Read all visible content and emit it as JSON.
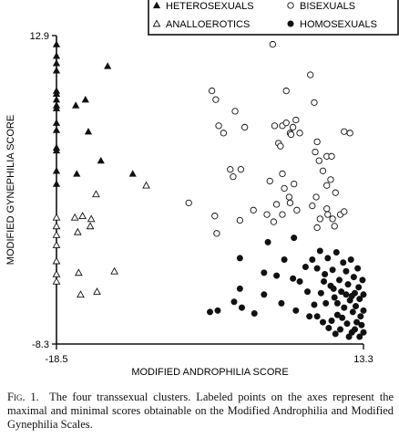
{
  "chart_data": {
    "type": "scatter",
    "title": "",
    "xlabel": "MODIFIED ANDROPHILIA SCORE",
    "ylabel": "MODIFIED GYNEPHILIA SCORE",
    "xlim": [
      -18.5,
      13.3
    ],
    "ylim": [
      -8.3,
      12.9
    ],
    "x_ticks": [
      "-18.5",
      "13.3"
    ],
    "y_ticks": [
      "12.9",
      "-8.3"
    ],
    "grid": false,
    "legend_placement": "top-right",
    "series": [
      {
        "name": "HETEROSEXUALS",
        "marker": "filled-triangle",
        "points": [
          [
            -18.5,
            12.3
          ],
          [
            -18.5,
            11.5
          ],
          [
            -18.5,
            11.0
          ],
          [
            -18.5,
            10.5
          ],
          [
            -18.5,
            9.1
          ],
          [
            -18.5,
            8.9
          ],
          [
            -18.5,
            8.5
          ],
          [
            -18.5,
            8.1
          ],
          [
            -18.5,
            7.9
          ],
          [
            -18.5,
            6.9
          ],
          [
            -18.5,
            6.4
          ],
          [
            -18.5,
            5.2
          ],
          [
            -18.5,
            5.0
          ],
          [
            -18.5,
            3.6
          ],
          [
            -18.5,
            2.7
          ],
          [
            -16.5,
            8.1
          ],
          [
            -16.4,
            3.4
          ],
          [
            -15.5,
            8.5
          ],
          [
            -15.2,
            6.3
          ],
          [
            -13.9,
            4.3
          ],
          [
            -13.2,
            10.8
          ],
          [
            -10.6,
            3.4
          ]
        ]
      },
      {
        "name": "ANALLOEROTICS",
        "marker": "hollow-triangle",
        "points": [
          [
            -18.5,
            0.4
          ],
          [
            -18.5,
            -0.2
          ],
          [
            -18.5,
            -0.8
          ],
          [
            -18.5,
            -1.5
          ],
          [
            -18.5,
            -2.6
          ],
          [
            -18.5,
            -3.5
          ],
          [
            -18.5,
            -4.0
          ],
          [
            -16.6,
            0.4
          ],
          [
            -16.3,
            -0.6
          ],
          [
            -16.2,
            -3.4
          ],
          [
            -16.0,
            -4.9
          ],
          [
            -15.8,
            0.5
          ],
          [
            -15.0,
            -0.2
          ],
          [
            -14.9,
            0.3
          ],
          [
            -14.4,
            2.0
          ],
          [
            -14.3,
            -4.7
          ],
          [
            -12.5,
            -3.3
          ],
          [
            -9.2,
            2.6
          ]
        ]
      },
      {
        "name": "BISEXUALS",
        "marker": "hollow-circle",
        "points": [
          [
            -2.4,
            9.1
          ],
          [
            -2.0,
            8.5
          ],
          [
            -1.7,
            6.7
          ],
          [
            -1.2,
            6.2
          ],
          [
            -4.8,
            1.4
          ],
          [
            -2.1,
            0.5
          ],
          [
            -1.9,
            -0.7
          ],
          [
            0.0,
            7.7
          ],
          [
            1.0,
            6.6
          ],
          [
            -0.5,
            3.7
          ],
          [
            -0.2,
            3.2
          ],
          [
            0.6,
            3.7
          ],
          [
            0.5,
            0.2
          ],
          [
            1.9,
            0.9
          ],
          [
            3.9,
            12.3
          ],
          [
            4.1,
            6.7
          ],
          [
            4.5,
            5.5
          ],
          [
            4.7,
            5.3
          ],
          [
            4.9,
            6.7
          ],
          [
            5.3,
            6.9
          ],
          [
            5.7,
            6.2
          ],
          [
            5.3,
            9.1
          ],
          [
            6.3,
            7.1
          ],
          [
            5.8,
            6.1
          ],
          [
            6.0,
            6.6
          ],
          [
            6.7,
            6.2
          ],
          [
            3.6,
            2.9
          ],
          [
            4.3,
            1.3
          ],
          [
            4.9,
            3.4
          ],
          [
            5.1,
            2.4
          ],
          [
            5.6,
            1.8
          ],
          [
            6.1,
            2.7
          ],
          [
            3.3,
            0.6
          ],
          [
            4.0,
            0.1
          ],
          [
            4.9,
            0.6
          ],
          [
            5.7,
            1.4
          ],
          [
            6.4,
            0.9
          ],
          [
            7.8,
            10.2
          ],
          [
            8.2,
            8.3
          ],
          [
            8.5,
            5.6
          ],
          [
            8.3,
            4.9
          ],
          [
            8.7,
            4.3
          ],
          [
            9.5,
            4.6
          ],
          [
            9.1,
            3.6
          ],
          [
            9.5,
            2.6
          ],
          [
            10.0,
            4.6
          ],
          [
            9.9,
            3.0
          ],
          [
            10.4,
            2.1
          ],
          [
            8.4,
            1.8
          ],
          [
            8.0,
            1.2
          ],
          [
            8.8,
            0.3
          ],
          [
            9.5,
            1.0
          ],
          [
            10.1,
            0.3
          ],
          [
            10.9,
            0.6
          ],
          [
            11.3,
            6.3
          ],
          [
            11.9,
            6.2
          ],
          [
            11.3,
            0.8
          ],
          [
            10.3,
            -0.2
          ],
          [
            9.6,
            0.6
          ],
          [
            8.5,
            -0.3
          ]
        ]
      },
      {
        "name": "HOMOSEXUALS",
        "marker": "filled-circle",
        "points": [
          [
            -2.6,
            -6.1
          ],
          [
            -1.8,
            -6.0
          ],
          [
            -0.1,
            -5.4
          ],
          [
            0.5,
            -4.5
          ],
          [
            0.5,
            -2.4
          ],
          [
            0.7,
            -5.8
          ],
          [
            2.0,
            -6.2
          ],
          [
            3.0,
            -4.9
          ],
          [
            3.0,
            -3.4
          ],
          [
            3.4,
            -1.3
          ],
          [
            4.3,
            -3.6
          ],
          [
            4.8,
            -5.5
          ],
          [
            5.1,
            -2.5
          ],
          [
            6.0,
            -3.8
          ],
          [
            6.1,
            -1.0
          ],
          [
            6.3,
            -6.0
          ],
          [
            6.7,
            -4.0
          ],
          [
            7.3,
            -3.0
          ],
          [
            7.5,
            -4.7
          ],
          [
            7.7,
            -6.4
          ],
          [
            8.0,
            -2.5
          ],
          [
            8.2,
            -5.6
          ],
          [
            8.5,
            -3.1
          ],
          [
            8.5,
            -6.4
          ],
          [
            8.8,
            -1.9
          ],
          [
            8.9,
            -4.8
          ],
          [
            9.1,
            -6.8
          ],
          [
            9.3,
            -3.5
          ],
          [
            9.4,
            -5.5
          ],
          [
            9.6,
            -2.4
          ],
          [
            9.9,
            -4.3
          ],
          [
            10.0,
            -6.7
          ],
          [
            10.1,
            -3.2
          ],
          [
            10.3,
            -5.1
          ],
          [
            10.5,
            -2.0
          ],
          [
            10.6,
            -6.3
          ],
          [
            10.8,
            -3.9
          ],
          [
            10.9,
            -7.3
          ],
          [
            11.0,
            -4.7
          ],
          [
            11.2,
            -2.7
          ],
          [
            11.3,
            -5.8
          ],
          [
            11.5,
            -3.3
          ],
          [
            11.6,
            -6.9
          ],
          [
            11.7,
            -4.2
          ],
          [
            11.9,
            -5.3
          ],
          [
            12.0,
            -2.5
          ],
          [
            12.1,
            -7.5
          ],
          [
            12.2,
            -6.1
          ],
          [
            12.3,
            -3.7
          ],
          [
            12.4,
            -4.8
          ],
          [
            12.5,
            -5.7
          ],
          [
            12.6,
            -6.8
          ],
          [
            12.7,
            -3.1
          ],
          [
            12.8,
            -4.4
          ],
          [
            12.9,
            -5.2
          ],
          [
            13.0,
            -6.4
          ],
          [
            13.1,
            -7.0
          ],
          [
            13.2,
            -3.9
          ],
          [
            13.3,
            -4.9
          ],
          [
            13.3,
            -6.0
          ],
          [
            13.3,
            -7.5
          ],
          [
            9.7,
            -7.2
          ],
          [
            10.4,
            -7.6
          ],
          [
            11.1,
            -6.5
          ],
          [
            11.8,
            -7.8
          ],
          [
            12.4,
            -7.3
          ],
          [
            12.9,
            -7.8
          ],
          [
            10.6,
            -5.5
          ],
          [
            11.5,
            -4.9
          ],
          [
            12.1,
            -5.0
          ],
          [
            9.2,
            -4.0
          ],
          [
            10.2,
            -4.5
          ]
        ]
      }
    ]
  },
  "caption": {
    "fig_label": "Fig. 1.",
    "text": "The four transsexual clusters. Labeled points on the axes represent the maximal and minimal scores obtainable on the Modified Androphilia and Modified Gynephilia Scales."
  }
}
